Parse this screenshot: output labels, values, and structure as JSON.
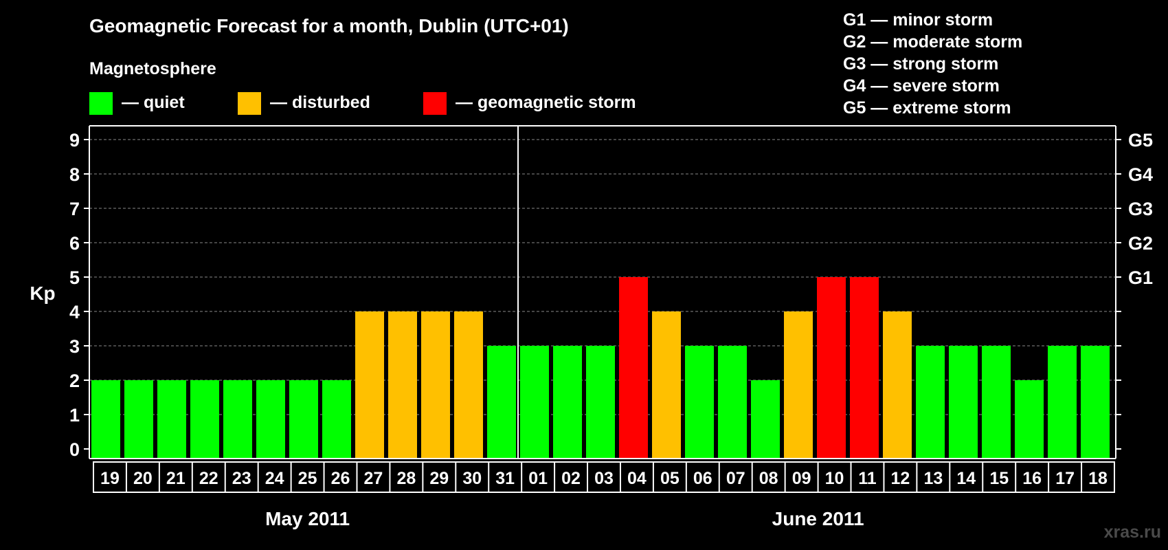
{
  "chart_data": {
    "type": "bar",
    "title": "Geomagnetic Forecast for a month, Dublin (UTC+01)",
    "legend_title": "Magnetosphere",
    "legend": [
      {
        "label": "— quiet",
        "color": "#00ff00"
      },
      {
        "label": "— disturbed",
        "color": "#ffc000"
      },
      {
        "label": "— geomagnetic storm",
        "color": "#ff0000"
      }
    ],
    "storm_scale": [
      "G1 — minor storm",
      "G2 — moderate storm",
      "G3 — strong storm",
      "G4 — severe storm",
      "G5 — extreme storm"
    ],
    "ylabel": "Kp",
    "ylim": [
      0,
      9
    ],
    "y_ticks": [
      "0",
      "1",
      "2",
      "3",
      "4",
      "5",
      "6",
      "7",
      "8",
      "9"
    ],
    "right_ticks": [
      {
        "value": 5,
        "label": "G1"
      },
      {
        "value": 6,
        "label": "G2"
      },
      {
        "value": 7,
        "label": "G3"
      },
      {
        "value": 8,
        "label": "G4"
      },
      {
        "value": 9,
        "label": "G5"
      }
    ],
    "categories": [
      "19",
      "20",
      "21",
      "22",
      "23",
      "24",
      "25",
      "26",
      "27",
      "28",
      "29",
      "30",
      "31",
      "01",
      "02",
      "03",
      "04",
      "05",
      "06",
      "07",
      "08",
      "09",
      "10",
      "11",
      "12",
      "13",
      "14",
      "15",
      "16",
      "17",
      "18"
    ],
    "values": [
      2,
      2,
      2,
      2,
      2,
      2,
      2,
      2,
      4,
      4,
      4,
      4,
      3,
      3,
      3,
      3,
      5,
      4,
      3,
      3,
      2,
      4,
      5,
      5,
      4,
      3,
      3,
      3,
      2,
      3,
      3
    ],
    "months": [
      {
        "label": "May 2011",
        "start": 0,
        "count": 13
      },
      {
        "label": "June 2011",
        "start": 13,
        "count": 18
      }
    ],
    "colors": {
      "quiet": "#00ff00",
      "disturbed": "#ffc000",
      "storm": "#ff0000"
    },
    "grid": true
  },
  "watermark": "xras.ru"
}
